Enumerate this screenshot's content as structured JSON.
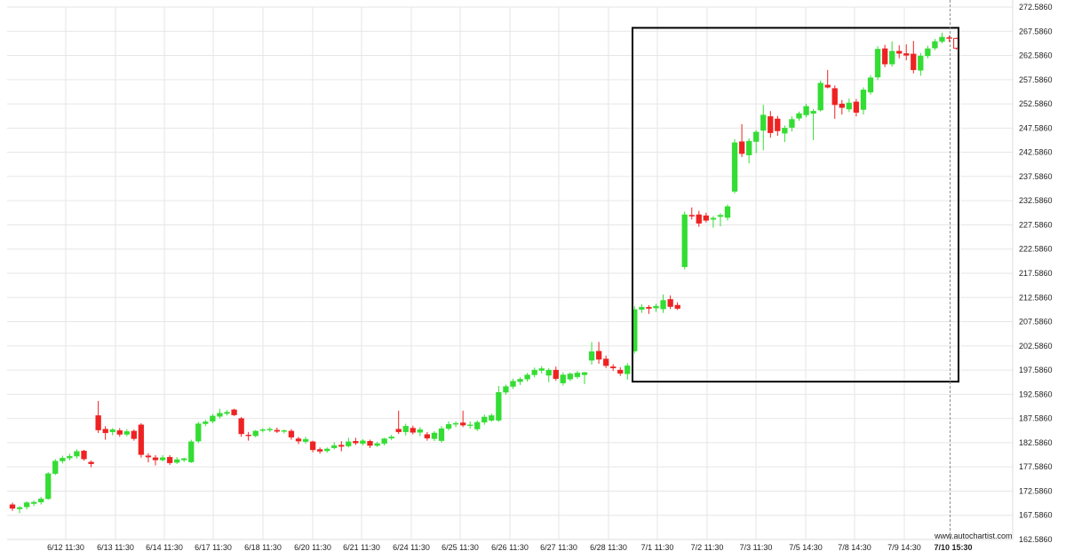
{
  "chart_data": {
    "type": "candlestick",
    "ylim": [
      162.586,
      272.586
    ],
    "y_ticks": [
      "272.5860",
      "267.5860",
      "262.5860",
      "257.5860",
      "252.5860",
      "247.5860",
      "242.5860",
      "237.5860",
      "232.5860",
      "227.5860",
      "222.5860",
      "217.5860",
      "212.5860",
      "207.5860",
      "202.5860",
      "197.5860",
      "192.5860",
      "187.5860",
      "182.5860",
      "177.5860",
      "172.5860",
      "167.5860",
      "162.5860"
    ],
    "x_labels": [
      "6/12 11:30",
      "6/13 11:30",
      "6/14 11:30",
      "6/17 11:30",
      "6/18 11:30",
      "6/20 11:30",
      "6/21 11:30",
      "6/24 11:30",
      "6/25 11:30",
      "6/26 11:30",
      "6/27 11:30",
      "6/28 11:30",
      "7/1 11:30",
      "7/2 11:30",
      "7/3 11:30",
      "7/5 14:30",
      "7/8 14:30",
      "7/9 14:30",
      "7/10 15:30"
    ],
    "current_x_label": "7/10 15:30",
    "grid": true,
    "colors": {
      "up": "#33dd33",
      "down": "#ee2222",
      "grid": "#e6e6e6",
      "box": "#000000"
    },
    "pattern_box": {
      "x_start": 77.0,
      "x_end": 110.0,
      "y_low": 195.2,
      "y_high": 268.3
    },
    "candles": [
      {
        "x": 0,
        "o": 169.8,
        "h": 170.2,
        "l": 168.5,
        "c": 169.0
      },
      {
        "x": 1,
        "o": 168.9,
        "h": 169.5,
        "l": 168.0,
        "c": 169.2
      },
      {
        "x": 2,
        "o": 169.3,
        "h": 170.5,
        "l": 168.8,
        "c": 170.2
      },
      {
        "x": 3,
        "o": 170.0,
        "h": 170.6,
        "l": 169.5,
        "c": 170.3
      },
      {
        "x": 4,
        "o": 170.3,
        "h": 171.4,
        "l": 169.8,
        "c": 171.0
      },
      {
        "x": 5,
        "o": 171.0,
        "h": 176.5,
        "l": 170.8,
        "c": 176.2
      },
      {
        "x": 6,
        "o": 176.2,
        "h": 179.2,
        "l": 175.9,
        "c": 178.8
      },
      {
        "x": 7,
        "o": 178.8,
        "h": 179.9,
        "l": 178.3,
        "c": 179.4
      },
      {
        "x": 8,
        "o": 179.4,
        "h": 180.3,
        "l": 178.9,
        "c": 179.8
      },
      {
        "x": 9,
        "o": 179.8,
        "h": 181.2,
        "l": 179.3,
        "c": 180.8
      },
      {
        "x": 10,
        "o": 180.9,
        "h": 181.1,
        "l": 178.9,
        "c": 179.2
      },
      {
        "x": 11,
        "o": 178.6,
        "h": 178.9,
        "l": 177.5,
        "c": 178.2
      },
      {
        "x": 12,
        "o": 188.2,
        "h": 191.2,
        "l": 184.6,
        "c": 185.2
      },
      {
        "x": 13,
        "o": 185.4,
        "h": 186.0,
        "l": 183.2,
        "c": 184.6
      },
      {
        "x": 14,
        "o": 184.8,
        "h": 185.6,
        "l": 184.1,
        "c": 185.3
      },
      {
        "x": 15,
        "o": 185.1,
        "h": 185.6,
        "l": 183.8,
        "c": 184.3
      },
      {
        "x": 16,
        "o": 184.3,
        "h": 185.4,
        "l": 183.9,
        "c": 184.9
      },
      {
        "x": 17,
        "o": 185.0,
        "h": 185.3,
        "l": 183.0,
        "c": 183.4
      },
      {
        "x": 18,
        "o": 186.3,
        "h": 186.6,
        "l": 179.5,
        "c": 180.1
      },
      {
        "x": 19,
        "o": 179.9,
        "h": 180.4,
        "l": 178.5,
        "c": 179.6
      },
      {
        "x": 20,
        "o": 179.5,
        "h": 180.0,
        "l": 177.9,
        "c": 179.0
      },
      {
        "x": 21,
        "o": 179.0,
        "h": 180.0,
        "l": 178.7,
        "c": 179.5
      },
      {
        "x": 22,
        "o": 179.6,
        "h": 180.0,
        "l": 178.0,
        "c": 178.4
      },
      {
        "x": 23,
        "o": 178.5,
        "h": 179.6,
        "l": 178.2,
        "c": 179.1
      },
      {
        "x": 24,
        "o": 179.0,
        "h": 179.5,
        "l": 178.6,
        "c": 179.3
      },
      {
        "x": 25,
        "o": 178.6,
        "h": 183.2,
        "l": 178.4,
        "c": 182.8
      },
      {
        "x": 26,
        "o": 182.9,
        "h": 186.9,
        "l": 182.5,
        "c": 186.5
      },
      {
        "x": 27,
        "o": 186.5,
        "h": 187.3,
        "l": 186.0,
        "c": 186.9
      },
      {
        "x": 28,
        "o": 187.0,
        "h": 188.5,
        "l": 186.6,
        "c": 188.1
      },
      {
        "x": 29,
        "o": 188.0,
        "h": 189.6,
        "l": 187.6,
        "c": 188.7
      },
      {
        "x": 30,
        "o": 188.6,
        "h": 189.3,
        "l": 188.2,
        "c": 188.9
      },
      {
        "x": 31,
        "o": 189.4,
        "h": 189.6,
        "l": 188.1,
        "c": 188.3
      },
      {
        "x": 32,
        "o": 187.6,
        "h": 187.9,
        "l": 183.8,
        "c": 184.4
      },
      {
        "x": 33,
        "o": 184.2,
        "h": 184.8,
        "l": 183.0,
        "c": 184.0
      },
      {
        "x": 34,
        "o": 184.0,
        "h": 185.2,
        "l": 183.7,
        "c": 185.0
      },
      {
        "x": 35,
        "o": 185.1,
        "h": 185.6,
        "l": 184.7,
        "c": 185.3
      },
      {
        "x": 36,
        "o": 185.3,
        "h": 185.8,
        "l": 184.8,
        "c": 185.4
      },
      {
        "x": 37,
        "o": 185.2,
        "h": 185.7,
        "l": 184.6,
        "c": 184.9
      },
      {
        "x": 38,
        "o": 184.9,
        "h": 185.3,
        "l": 184.5,
        "c": 185.1
      },
      {
        "x": 39,
        "o": 185.0,
        "h": 185.4,
        "l": 183.2,
        "c": 183.7
      },
      {
        "x": 40,
        "o": 183.4,
        "h": 183.8,
        "l": 182.3,
        "c": 182.9
      },
      {
        "x": 41,
        "o": 182.8,
        "h": 183.8,
        "l": 182.4,
        "c": 183.3
      },
      {
        "x": 42,
        "o": 182.8,
        "h": 183.0,
        "l": 180.6,
        "c": 181.1
      },
      {
        "x": 43,
        "o": 181.2,
        "h": 181.6,
        "l": 180.3,
        "c": 180.8
      },
      {
        "x": 44,
        "o": 180.9,
        "h": 181.6,
        "l": 180.5,
        "c": 181.3
      },
      {
        "x": 45,
        "o": 181.5,
        "h": 182.7,
        "l": 181.2,
        "c": 182.0
      },
      {
        "x": 46,
        "o": 182.1,
        "h": 182.9,
        "l": 180.8,
        "c": 181.8
      },
      {
        "x": 47,
        "o": 181.9,
        "h": 183.6,
        "l": 181.6,
        "c": 182.8
      },
      {
        "x": 48,
        "o": 182.9,
        "h": 183.6,
        "l": 182.1,
        "c": 182.5
      },
      {
        "x": 49,
        "o": 182.4,
        "h": 183.3,
        "l": 182.0,
        "c": 183.0
      },
      {
        "x": 50,
        "o": 182.9,
        "h": 183.2,
        "l": 181.5,
        "c": 182.0
      },
      {
        "x": 51,
        "o": 182.0,
        "h": 182.8,
        "l": 181.7,
        "c": 182.4
      },
      {
        "x": 52,
        "o": 182.4,
        "h": 183.6,
        "l": 182.0,
        "c": 183.4
      },
      {
        "x": 53,
        "o": 183.5,
        "h": 184.2,
        "l": 183.1,
        "c": 183.8
      },
      {
        "x": 54,
        "o": 185.4,
        "h": 189.2,
        "l": 184.4,
        "c": 184.8
      },
      {
        "x": 55,
        "o": 184.8,
        "h": 186.5,
        "l": 184.1,
        "c": 186.0
      },
      {
        "x": 56,
        "o": 185.6,
        "h": 186.1,
        "l": 184.3,
        "c": 184.7
      },
      {
        "x": 57,
        "o": 184.7,
        "h": 185.8,
        "l": 183.9,
        "c": 185.3
      },
      {
        "x": 58,
        "o": 184.3,
        "h": 184.8,
        "l": 183.0,
        "c": 183.5
      },
      {
        "x": 59,
        "o": 183.4,
        "h": 185.0,
        "l": 182.9,
        "c": 184.6
      },
      {
        "x": 60,
        "o": 183.0,
        "h": 186.0,
        "l": 182.6,
        "c": 185.5
      },
      {
        "x": 61,
        "o": 185.5,
        "h": 187.0,
        "l": 185.1,
        "c": 186.4
      },
      {
        "x": 62,
        "o": 186.4,
        "h": 187.0,
        "l": 185.8,
        "c": 186.6
      },
      {
        "x": 63,
        "o": 186.7,
        "h": 189.2,
        "l": 185.8,
        "c": 186.2
      },
      {
        "x": 64,
        "o": 186.2,
        "h": 187.0,
        "l": 185.5,
        "c": 186.3
      },
      {
        "x": 65,
        "o": 185.4,
        "h": 187.2,
        "l": 185.0,
        "c": 186.8
      },
      {
        "x": 66,
        "o": 186.8,
        "h": 188.4,
        "l": 186.3,
        "c": 187.9
      },
      {
        "x": 67,
        "o": 187.2,
        "h": 188.6,
        "l": 186.9,
        "c": 188.2
      },
      {
        "x": 68,
        "o": 187.2,
        "h": 194.3,
        "l": 186.9,
        "c": 193.0
      },
      {
        "x": 69,
        "o": 193.0,
        "h": 194.6,
        "l": 192.5,
        "c": 194.2
      },
      {
        "x": 70,
        "o": 194.2,
        "h": 195.8,
        "l": 193.7,
        "c": 195.3
      },
      {
        "x": 71,
        "o": 195.2,
        "h": 196.1,
        "l": 194.5,
        "c": 195.7
      },
      {
        "x": 72,
        "o": 195.7,
        "h": 197.0,
        "l": 195.2,
        "c": 196.6
      },
      {
        "x": 73,
        "o": 196.6,
        "h": 198.1,
        "l": 196.1,
        "c": 197.6
      },
      {
        "x": 74,
        "o": 197.5,
        "h": 198.4,
        "l": 196.9,
        "c": 197.9
      },
      {
        "x": 75,
        "o": 196.5,
        "h": 198.0,
        "l": 195.1,
        "c": 197.6
      },
      {
        "x": 76,
        "o": 197.6,
        "h": 198.3,
        "l": 195.4,
        "c": 195.8
      },
      {
        "x": 77,
        "o": 194.9,
        "h": 197.1,
        "l": 194.4,
        "c": 196.6
      },
      {
        "x": 78,
        "o": 195.7,
        "h": 197.1,
        "l": 195.3,
        "c": 196.8
      },
      {
        "x": 79,
        "o": 196.2,
        "h": 197.4,
        "l": 195.8,
        "c": 197.0
      },
      {
        "x": 80,
        "o": 196.6,
        "h": 197.2,
        "l": 194.7,
        "c": 197.1
      },
      {
        "x": 81,
        "o": 199.6,
        "h": 203.4,
        "l": 198.7,
        "c": 201.4
      },
      {
        "x": 82,
        "o": 201.5,
        "h": 203.4,
        "l": 198.9,
        "c": 199.8
      },
      {
        "x": 83,
        "o": 199.9,
        "h": 200.6,
        "l": 198.0,
        "c": 198.5
      },
      {
        "x": 84,
        "o": 198.3,
        "h": 198.8,
        "l": 197.4,
        "c": 198.0
      },
      {
        "x": 85,
        "o": 197.6,
        "h": 198.2,
        "l": 196.4,
        "c": 196.9
      },
      {
        "x": 86,
        "o": 196.8,
        "h": 199.0,
        "l": 195.6,
        "c": 198.5
      },
      {
        "x": 87,
        "o": 201.5,
        "h": 210.8,
        "l": 201.0,
        "c": 210.1
      },
      {
        "x": 88,
        "o": 210.1,
        "h": 211.2,
        "l": 209.4,
        "c": 210.6
      },
      {
        "x": 89,
        "o": 210.6,
        "h": 211.0,
        "l": 209.2,
        "c": 210.3
      },
      {
        "x": 90,
        "o": 210.4,
        "h": 211.3,
        "l": 209.6,
        "c": 210.8
      },
      {
        "x": 91,
        "o": 210.2,
        "h": 213.2,
        "l": 209.4,
        "c": 212.0
      },
      {
        "x": 92,
        "o": 212.2,
        "h": 213.0,
        "l": 210.2,
        "c": 210.7
      },
      {
        "x": 93,
        "o": 211.0,
        "h": 211.6,
        "l": 210.0,
        "c": 210.3
      },
      {
        "x": 94,
        "o": 218.9,
        "h": 230.3,
        "l": 218.4,
        "c": 229.7
      },
      {
        "x": 95,
        "o": 229.6,
        "h": 231.2,
        "l": 228.7,
        "c": 229.4
      },
      {
        "x": 96,
        "o": 229.7,
        "h": 230.5,
        "l": 227.2,
        "c": 227.9
      },
      {
        "x": 97,
        "o": 229.5,
        "h": 230.1,
        "l": 228.1,
        "c": 228.5
      },
      {
        "x": 98,
        "o": 228.7,
        "h": 229.4,
        "l": 227.0,
        "c": 229.0
      },
      {
        "x": 99,
        "o": 229.3,
        "h": 230.0,
        "l": 227.3,
        "c": 229.6
      },
      {
        "x": 100,
        "o": 229.1,
        "h": 231.8,
        "l": 228.5,
        "c": 231.4
      },
      {
        "x": 101,
        "o": 234.5,
        "h": 245.3,
        "l": 234.1,
        "c": 244.6
      },
      {
        "x": 102,
        "o": 244.8,
        "h": 248.4,
        "l": 241.6,
        "c": 242.3
      },
      {
        "x": 103,
        "o": 242.0,
        "h": 245.5,
        "l": 240.3,
        "c": 244.9
      },
      {
        "x": 104,
        "o": 244.8,
        "h": 247.2,
        "l": 242.4,
        "c": 246.8
      },
      {
        "x": 105,
        "o": 247.1,
        "h": 252.4,
        "l": 243.0,
        "c": 250.3
      },
      {
        "x": 106,
        "o": 250.0,
        "h": 251.1,
        "l": 245.6,
        "c": 246.6
      },
      {
        "x": 107,
        "o": 249.5,
        "h": 250.1,
        "l": 246.0,
        "c": 247.0
      },
      {
        "x": 108,
        "o": 246.5,
        "h": 248.1,
        "l": 244.7,
        "c": 247.6
      },
      {
        "x": 109,
        "o": 247.7,
        "h": 250.0,
        "l": 246.9,
        "c": 249.4
      },
      {
        "x": 110,
        "o": 249.6,
        "h": 251.0,
        "l": 249.1,
        "c": 250.6
      },
      {
        "x": 111,
        "o": 250.3,
        "h": 252.6,
        "l": 249.8,
        "c": 252.1
      },
      {
        "x": 112,
        "o": 250.6,
        "h": 251.5,
        "l": 245.1,
        "c": 251.1
      },
      {
        "x": 113,
        "o": 251.3,
        "h": 257.4,
        "l": 251.0,
        "c": 256.9
      },
      {
        "x": 114,
        "o": 256.5,
        "h": 259.6,
        "l": 255.8,
        "c": 256.0
      },
      {
        "x": 115,
        "o": 255.8,
        "h": 256.4,
        "l": 249.5,
        "c": 252.4
      },
      {
        "x": 116,
        "o": 252.6,
        "h": 253.4,
        "l": 250.4,
        "c": 251.8
      },
      {
        "x": 117,
        "o": 251.5,
        "h": 253.7,
        "l": 250.9,
        "c": 252.8
      },
      {
        "x": 118,
        "o": 253.0,
        "h": 253.6,
        "l": 250.0,
        "c": 250.8
      },
      {
        "x": 119,
        "o": 251.4,
        "h": 256.0,
        "l": 250.4,
        "c": 255.5
      },
      {
        "x": 120,
        "o": 255.0,
        "h": 258.5,
        "l": 254.5,
        "c": 258.0
      },
      {
        "x": 121,
        "o": 258.1,
        "h": 264.5,
        "l": 257.5,
        "c": 263.9
      },
      {
        "x": 122,
        "o": 264.0,
        "h": 264.8,
        "l": 260.2,
        "c": 260.8
      },
      {
        "x": 123,
        "o": 260.8,
        "h": 265.5,
        "l": 260.3,
        "c": 263.5
      },
      {
        "x": 124,
        "o": 263.5,
        "h": 264.7,
        "l": 262.0,
        "c": 263.0
      },
      {
        "x": 125,
        "o": 263.0,
        "h": 264.9,
        "l": 261.6,
        "c": 262.6
      },
      {
        "x": 126,
        "o": 262.9,
        "h": 265.6,
        "l": 258.9,
        "c": 259.6
      },
      {
        "x": 127,
        "o": 259.5,
        "h": 263.1,
        "l": 258.4,
        "c": 262.5
      },
      {
        "x": 128,
        "o": 262.5,
        "h": 264.6,
        "l": 262.0,
        "c": 264.0
      },
      {
        "x": 129,
        "o": 264.1,
        "h": 266.0,
        "l": 263.7,
        "c": 265.5
      },
      {
        "x": 130,
        "o": 265.5,
        "h": 267.3,
        "l": 265.1,
        "c": 266.4
      },
      {
        "x": 131,
        "o": 266.3,
        "h": 266.7,
        "l": 265.4,
        "c": 266.1
      },
      {
        "x": 132,
        "o": 266.1,
        "h": 266.3,
        "l": 263.8,
        "c": 264.1
      }
    ],
    "current_candle_hollow": true
  },
  "watermark": "www.autochartist.com"
}
